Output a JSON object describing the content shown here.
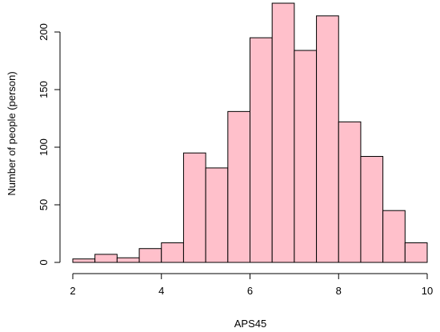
{
  "chart_data": {
    "type": "bar",
    "title": "",
    "xlabel": "APS45",
    "ylabel": "Number of people (person)",
    "bins": [
      {
        "x0": 2.0,
        "x1": 2.5,
        "count": 3
      },
      {
        "x0": 2.5,
        "x1": 3.0,
        "count": 7
      },
      {
        "x0": 3.0,
        "x1": 3.5,
        "count": 4
      },
      {
        "x0": 3.5,
        "x1": 4.0,
        "count": 12
      },
      {
        "x0": 4.0,
        "x1": 4.5,
        "count": 17
      },
      {
        "x0": 4.5,
        "x1": 5.0,
        "count": 95
      },
      {
        "x0": 5.0,
        "x1": 5.5,
        "count": 82
      },
      {
        "x0": 5.5,
        "x1": 6.0,
        "count": 131
      },
      {
        "x0": 6.0,
        "x1": 6.5,
        "count": 195
      },
      {
        "x0": 6.5,
        "x1": 7.0,
        "count": 225
      },
      {
        "x0": 7.0,
        "x1": 7.5,
        "count": 184
      },
      {
        "x0": 7.5,
        "x1": 8.0,
        "count": 214
      },
      {
        "x0": 8.0,
        "x1": 8.5,
        "count": 122
      },
      {
        "x0": 8.5,
        "x1": 9.0,
        "count": 92
      },
      {
        "x0": 9.0,
        "x1": 9.5,
        "count": 45
      },
      {
        "x0": 9.5,
        "x1": 10.0,
        "count": 17
      }
    ],
    "xlim": [
      2,
      10
    ],
    "ylim": [
      0,
      230
    ],
    "x_ticks": [
      2,
      4,
      6,
      8,
      10
    ],
    "y_ticks": [
      0,
      50,
      100,
      150,
      200
    ],
    "bar_color": "#FFC0CB",
    "grid": false,
    "legend": "none"
  }
}
